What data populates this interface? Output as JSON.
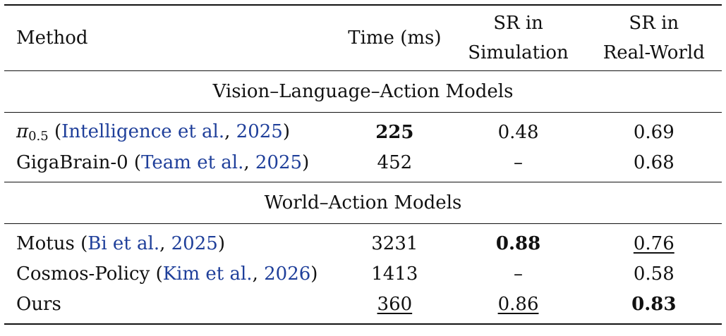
{
  "header": {
    "method": "Method",
    "time": "Time (ms)",
    "sim_line1": "SR in",
    "sim_line2": "Simulation",
    "real_line1": "SR in",
    "real_line2": "Real-World"
  },
  "groups": [
    {
      "title": "Vision–Language–Action Models",
      "rows": [
        {
          "method_symbol": "π",
          "method_subscript": "0.5",
          "cite_open": "(",
          "cite_authors": "Intelligence et al.",
          "cite_sep": ", ",
          "cite_year": "2025",
          "cite_close": ")",
          "time": "225",
          "sim": "0.48",
          "real": "0.69"
        },
        {
          "method": "GigaBrain-0",
          "cite_open": "(",
          "cite_authors": "Team et al.",
          "cite_sep": ", ",
          "cite_year": "2025",
          "cite_close": ")",
          "time": "452",
          "sim": "–",
          "real": "0.68"
        }
      ]
    },
    {
      "title": "World–Action Models",
      "rows": [
        {
          "method": "Motus",
          "cite_open": "(",
          "cite_authors": "Bi et al.",
          "cite_sep": ", ",
          "cite_year": "2025",
          "cite_close": ")",
          "time": "3231",
          "sim": "0.88",
          "real": "0.76"
        },
        {
          "method": "Cosmos-Policy",
          "cite_open": "(",
          "cite_authors": "Kim et al.",
          "cite_sep": ", ",
          "cite_year": "2026",
          "cite_close": ")",
          "time": "1413",
          "sim": "–",
          "real": "0.58"
        },
        {
          "method": "Ours",
          "time": "360",
          "sim": "0.86",
          "real": "0.83"
        }
      ]
    }
  ],
  "colors": {
    "citation": "#1f3f9a",
    "text": "#111111",
    "rules": "#111111"
  }
}
